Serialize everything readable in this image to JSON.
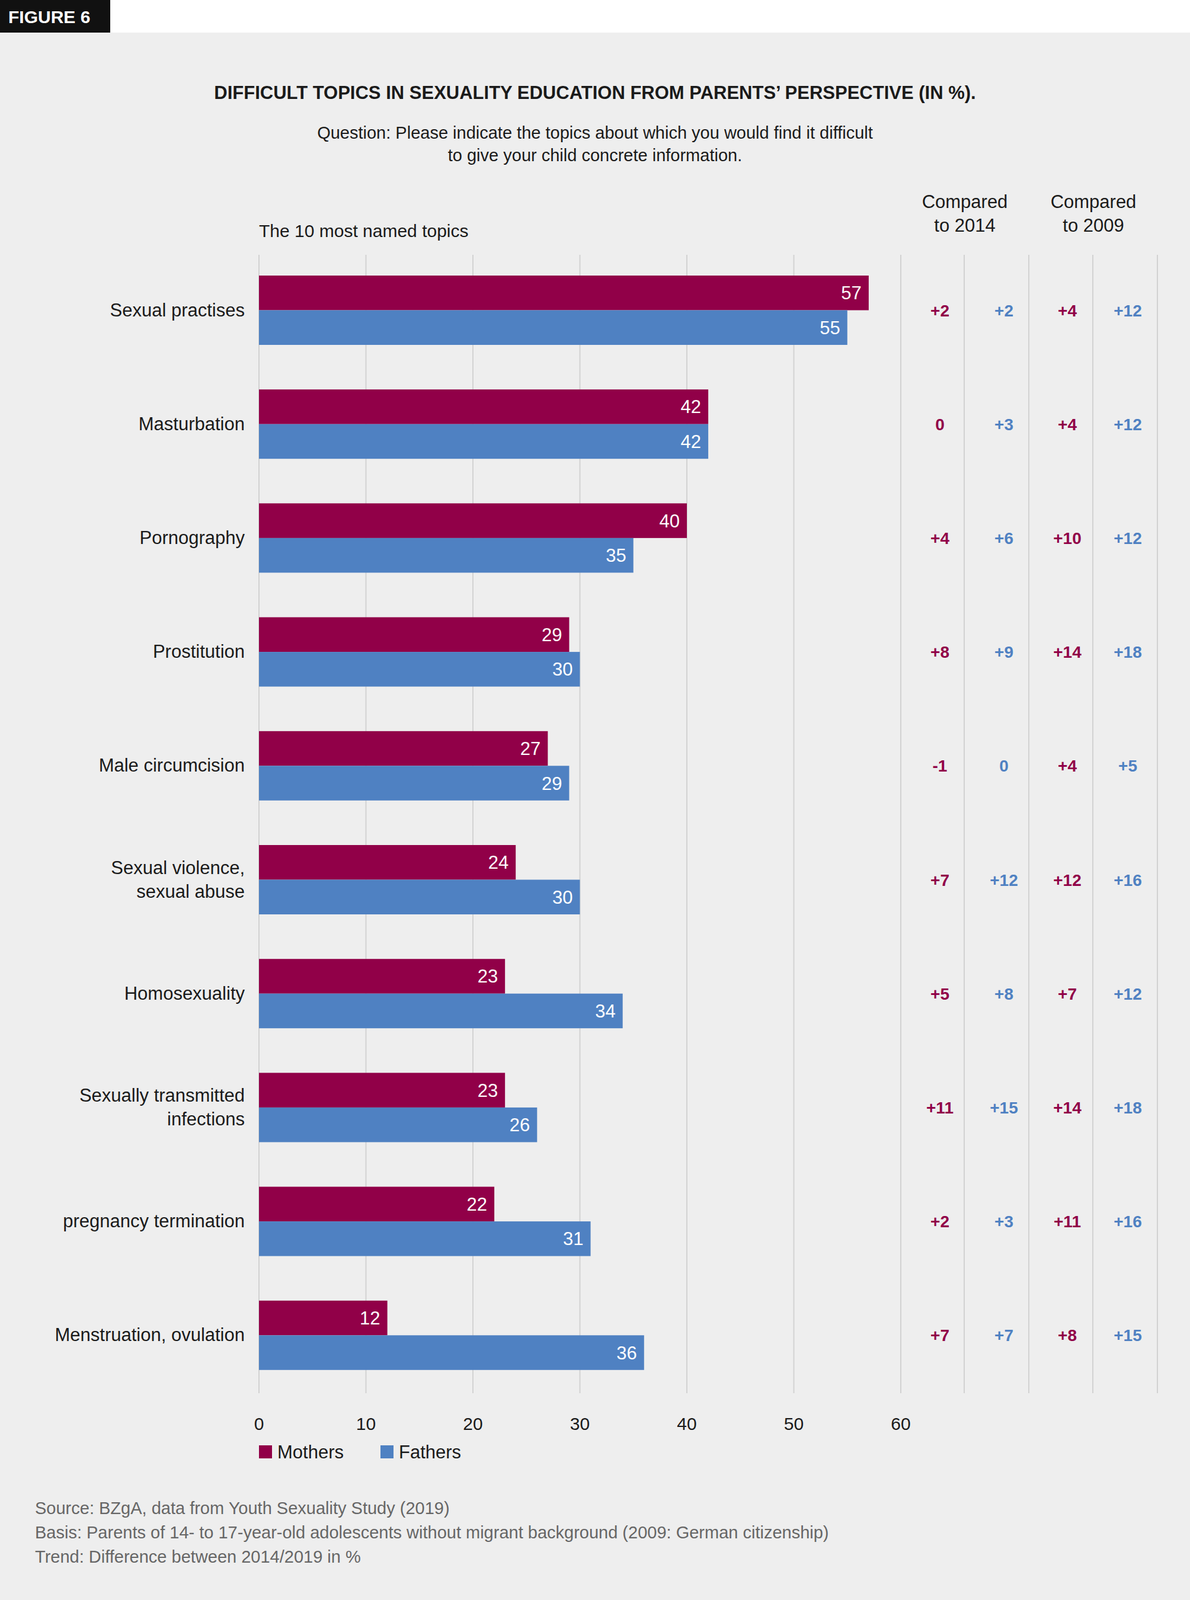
{
  "figure_label": "FIGURE 6",
  "chart_data": {
    "type": "bar",
    "orientation": "horizontal",
    "title": "DIFFICULT TOPICS IN SEXUALITY EDUCATION FROM PARENTS’ PERSPECTIVE (IN %).",
    "subtitle": [
      "Question: Please indicate the topics about which you would find it difficult",
      "to give your child concrete information."
    ],
    "category_header": "The 10 most named topics",
    "categories": [
      "Sexual practises",
      "Masturbation",
      "Pornography",
      "Prostitution",
      "Male circumcision",
      "Sexual violence,\nsexual abuse",
      "Homosexuality",
      "Sexually transmitted\ninfections",
      "pregnancy termination",
      "Menstruation, ovulation"
    ],
    "series": [
      {
        "name": "Mothers",
        "color": "#910048",
        "values": [
          57,
          42,
          40,
          29,
          27,
          24,
          23,
          23,
          22,
          12
        ]
      },
      {
        "name": "Fathers",
        "color": "#4f81c2",
        "values": [
          55,
          42,
          35,
          30,
          29,
          30,
          34,
          26,
          31,
          36
        ]
      }
    ],
    "xlim": [
      0,
      60
    ],
    "xticks": [
      0,
      10,
      20,
      30,
      40,
      50,
      60
    ],
    "grid": true,
    "data_labels": true,
    "legend": "bottom-left",
    "comparisons": [
      {
        "title": "Compared\nto 2014",
        "series": [
          {
            "name": "Mothers",
            "values": [
              2,
              0,
              4,
              8,
              -1,
              7,
              5,
              11,
              2,
              7
            ],
            "value_labels": [
              "+2",
              "0",
              "+4",
              "+8",
              "-1",
              "+7",
              "+5",
              "+11",
              "+2",
              "+7"
            ]
          },
          {
            "name": "Fathers",
            "values": [
              2,
              3,
              6,
              9,
              0,
              12,
              8,
              15,
              3,
              7
            ],
            "value_labels": [
              "+2",
              "+3",
              "+6",
              "+9",
              "0",
              "+12",
              "+8",
              "+15",
              "+3",
              "+7"
            ]
          }
        ]
      },
      {
        "title": "Compared\nto 2009",
        "series": [
          {
            "name": "Mothers",
            "values": [
              4,
              4,
              10,
              14,
              4,
              12,
              7,
              14,
              11,
              8
            ],
            "value_labels": [
              "+4",
              "+4",
              "+10",
              "+14",
              "+4",
              "+12",
              "+7",
              "+14",
              "+11",
              "+8"
            ]
          },
          {
            "name": "Fathers",
            "values": [
              12,
              12,
              12,
              18,
              5,
              16,
              12,
              18,
              16,
              15
            ],
            "value_labels": [
              "+12",
              "+12",
              "+12",
              "+18",
              "+5",
              "+16",
              "+12",
              "+18",
              "+16",
              "+15"
            ]
          }
        ]
      }
    ],
    "notes": [
      "Source: BZgA, data from Youth Sexuality Study (2019)",
      "Basis: Parents of 14- to 17-year-old adolescents without migrant background (2009: German citizenship)",
      "Trend: Difference between 2014/2019 in %"
    ]
  }
}
